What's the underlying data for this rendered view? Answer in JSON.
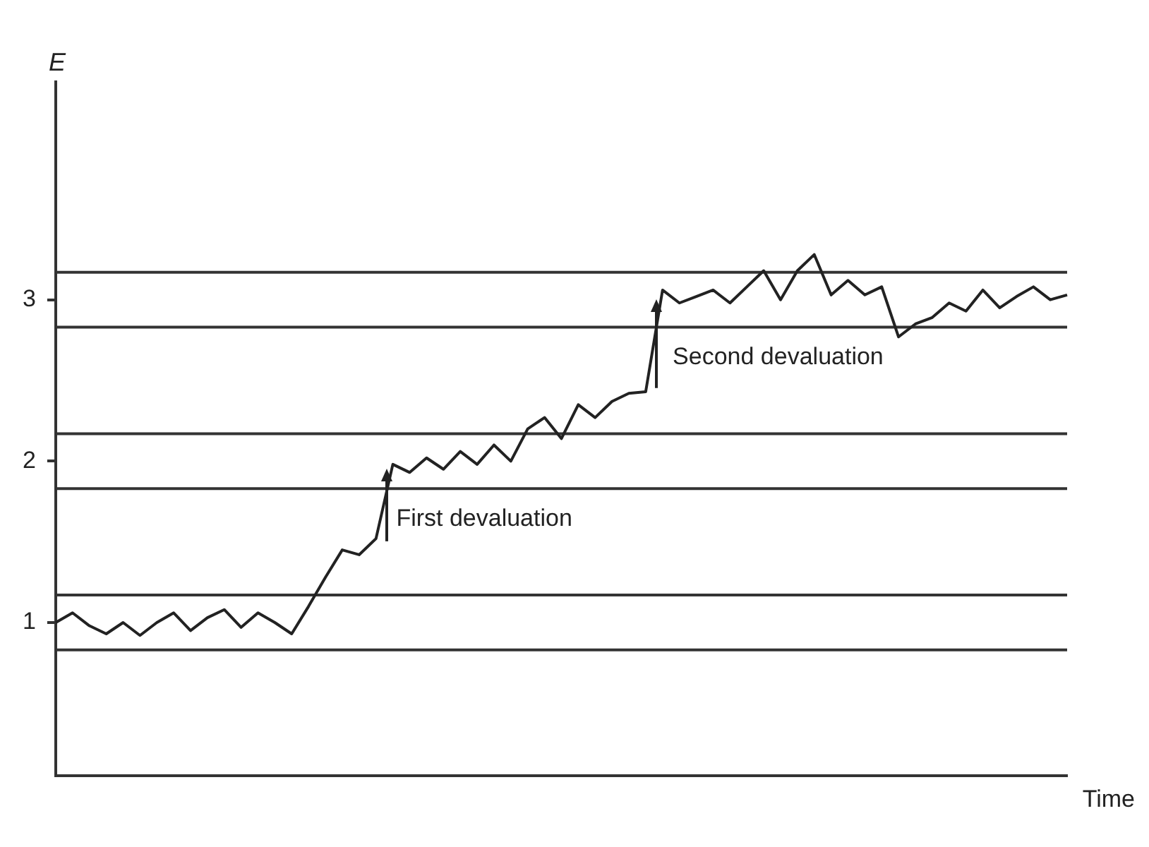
{
  "chart_data": {
    "type": "line",
    "xlabel": "Time",
    "ylabel": "E",
    "categories": [
      null,
      null,
      null,
      null,
      null,
      null,
      null,
      null,
      null,
      null,
      null,
      null,
      null,
      null,
      null,
      null,
      null,
      null,
      null,
      null,
      null,
      null,
      null,
      null,
      null,
      null,
      null,
      null,
      null,
      null,
      null,
      null,
      null,
      null,
      null,
      null,
      null,
      null,
      null,
      null,
      null,
      null,
      null,
      null,
      null,
      null,
      null,
      null,
      null,
      null,
      null,
      null,
      null,
      null,
      null,
      null,
      null,
      null,
      null,
      null,
      null
    ],
    "series": [
      {
        "color": "#222222",
        "values": [
          1.0,
          1.06,
          0.98,
          0.93,
          1.0,
          0.92,
          1.0,
          1.06,
          0.95,
          1.03,
          1.08,
          0.97,
          1.06,
          1.0,
          0.93,
          1.1,
          1.28,
          1.45,
          1.42,
          1.52,
          1.98,
          1.93,
          2.02,
          1.95,
          2.06,
          1.98,
          2.1,
          2.0,
          2.2,
          2.27,
          2.14,
          2.35,
          2.27,
          2.37,
          2.42,
          2.43,
          3.06,
          2.98,
          3.02,
          3.06,
          2.98,
          3.08,
          3.18,
          3.0,
          3.18,
          3.28,
          3.03,
          3.12,
          3.03,
          3.08,
          2.77,
          2.85,
          2.89,
          2.98,
          2.93,
          3.06,
          2.95,
          3.02,
          3.08,
          3.0,
          3.03
        ]
      }
    ],
    "ylim": [
      0.05,
      4.35
    ],
    "yticks": [
      1,
      2,
      3
    ],
    "grid": false,
    "legend": false,
    "marker": "none",
    "line_style": "solid",
    "ref_lines": [
      {
        "axis": "y",
        "value": 0.83,
        "color": "#333333"
      },
      {
        "axis": "y",
        "value": 1.17,
        "color": "#333333"
      },
      {
        "axis": "y",
        "value": 1.83,
        "color": "#333333"
      },
      {
        "axis": "y",
        "value": 2.17,
        "color": "#333333"
      },
      {
        "axis": "y",
        "value": 2.83,
        "color": "#333333"
      },
      {
        "axis": "y",
        "value": 3.17,
        "color": "#333333"
      }
    ],
    "annotations": [
      "First devaluation",
      "Second devaluation"
    ]
  }
}
